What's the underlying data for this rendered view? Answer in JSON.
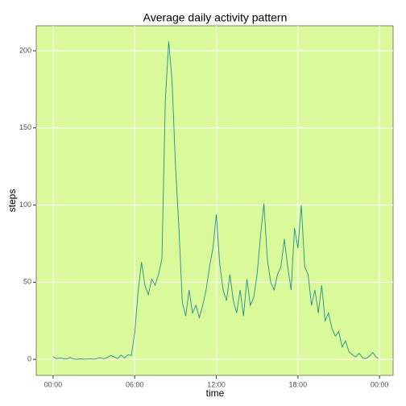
{
  "chart_data": {
    "type": "line",
    "title": "Average daily activity pattern",
    "xlabel": "time",
    "ylabel": "steps",
    "x": [
      0,
      0.25,
      0.5,
      0.75,
      1,
      1.25,
      1.5,
      1.75,
      2,
      2.25,
      2.5,
      2.75,
      3,
      3.25,
      3.5,
      3.75,
      4,
      4.25,
      4.5,
      4.75,
      5,
      5.25,
      5.5,
      5.75,
      6,
      6.25,
      6.5,
      6.75,
      7,
      7.25,
      7.5,
      7.75,
      8,
      8.25,
      8.5,
      8.75,
      9,
      9.25,
      9.5,
      9.75,
      10,
      10.25,
      10.5,
      10.75,
      11,
      11.25,
      11.5,
      11.75,
      12,
      12.25,
      12.5,
      12.75,
      13,
      13.25,
      13.5,
      13.75,
      14,
      14.25,
      14.5,
      14.75,
      15,
      15.25,
      15.5,
      15.75,
      16,
      16.25,
      16.5,
      16.75,
      17,
      17.25,
      17.5,
      17.75,
      18,
      18.25,
      18.5,
      18.75,
      19,
      19.25,
      19.5,
      19.75,
      20,
      20.25,
      20.5,
      20.75,
      21,
      21.25,
      21.5,
      21.75,
      22,
      22.25,
      22.5,
      22.75,
      23,
      23.25,
      23.5,
      23.75,
      23.92
    ],
    "series": [
      {
        "name": "steps",
        "color": "#21908c",
        "values": [
          1.7,
          0.4,
          0.9,
          0.5,
          0.3,
          1.2,
          0.2,
          0,
          0.3,
          0.1,
          0.2,
          0.4,
          0.1,
          0.6,
          1.1,
          0.3,
          1.3,
          2.5,
          1.5,
          0.5,
          2.7,
          0.9,
          3.0,
          2.4,
          17,
          44,
          63,
          48,
          42,
          52,
          48,
          55,
          65,
          168,
          206,
          180,
          125,
          85,
          37,
          28,
          45,
          30,
          35,
          27,
          35,
          45,
          60,
          72,
          94,
          62,
          45,
          38,
          55,
          38,
          30,
          45,
          28,
          52,
          35,
          40,
          55,
          80,
          101,
          65,
          50,
          45,
          55,
          60,
          78,
          60,
          45,
          85,
          72,
          100,
          60,
          55,
          35,
          45,
          30,
          48,
          25,
          30,
          20,
          15,
          18,
          8,
          12,
          5,
          3,
          1.5,
          4,
          1,
          0.5,
          2,
          4.5,
          1.5,
          0.5
        ]
      }
    ],
    "xlim": [
      -1.24,
      25.0
    ],
    "ylim": [
      -10.4,
      216.2
    ],
    "xticks": [
      {
        "value": 0,
        "label": "00:00"
      },
      {
        "value": 6,
        "label": "06:00"
      },
      {
        "value": 12,
        "label": "12:00"
      },
      {
        "value": 18,
        "label": "18:00"
      },
      {
        "value": 24,
        "label": "00:00"
      }
    ],
    "yticks": [
      0,
      50,
      100,
      150,
      200
    ],
    "grid": true,
    "background": "#daf99b"
  }
}
